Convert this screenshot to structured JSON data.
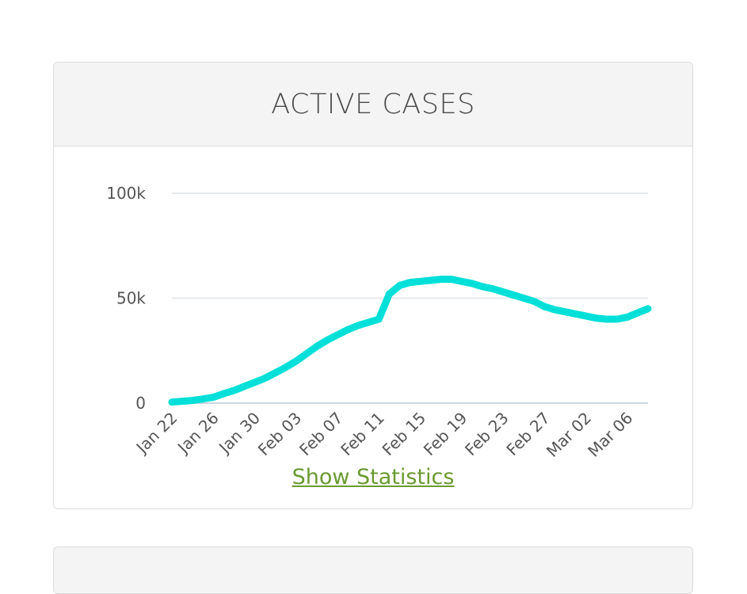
{
  "card": {
    "title": "ACTIVE CASES",
    "link_label": "Show Statistics"
  },
  "colors": {
    "line": "#00e0d8",
    "grid": "#e6e9ee",
    "baseline": "#ccd6e0",
    "link": "#6a9a30",
    "header_bg": "#f4f4f4"
  },
  "chart_data": {
    "type": "line",
    "title": "ACTIVE CASES",
    "xlabel": "",
    "ylabel": "",
    "ylim": [
      0,
      100000
    ],
    "y_ticks": [
      {
        "value": 0,
        "label": "0"
      },
      {
        "value": 50000,
        "label": "50k"
      },
      {
        "value": 100000,
        "label": "100k"
      }
    ],
    "x_tick_labels": [
      "Jan 22",
      "Jan 26",
      "Jan 30",
      "Feb 03",
      "Feb 07",
      "Feb 11",
      "Feb 15",
      "Feb 19",
      "Feb 23",
      "Feb 27",
      "Mar 02",
      "Mar 06"
    ],
    "x": [
      "Jan 22",
      "Jan 23",
      "Jan 24",
      "Jan 25",
      "Jan 26",
      "Jan 27",
      "Jan 28",
      "Jan 29",
      "Jan 30",
      "Jan 31",
      "Feb 01",
      "Feb 02",
      "Feb 03",
      "Feb 04",
      "Feb 05",
      "Feb 06",
      "Feb 07",
      "Feb 08",
      "Feb 09",
      "Feb 10",
      "Feb 11",
      "Feb 12",
      "Feb 13",
      "Feb 14",
      "Feb 15",
      "Feb 16",
      "Feb 17",
      "Feb 18",
      "Feb 19",
      "Feb 20",
      "Feb 21",
      "Feb 22",
      "Feb 23",
      "Feb 24",
      "Feb 25",
      "Feb 26",
      "Feb 27",
      "Feb 28",
      "Feb 29",
      "Mar 01",
      "Mar 02",
      "Mar 03",
      "Mar 04",
      "Mar 05",
      "Mar 06",
      "Mar 07",
      "Mar 08"
    ],
    "series": [
      {
        "values": [
          500,
          900,
          1300,
          2000,
          2800,
          4500,
          6000,
          8000,
          9900,
          11900,
          14500,
          17000,
          20000,
          23500,
          27000,
          30000,
          32500,
          35000,
          37000,
          38500,
          40000,
          52000,
          56000,
          57500,
          58000,
          58500,
          59000,
          59000,
          58000,
          57000,
          55500,
          54500,
          53000,
          51500,
          50000,
          48500,
          46000,
          44500,
          43500,
          42500,
          41500,
          40500,
          40000,
          40000,
          41000,
          43000,
          45000
        ]
      }
    ],
    "grid": true,
    "legend": "none"
  }
}
